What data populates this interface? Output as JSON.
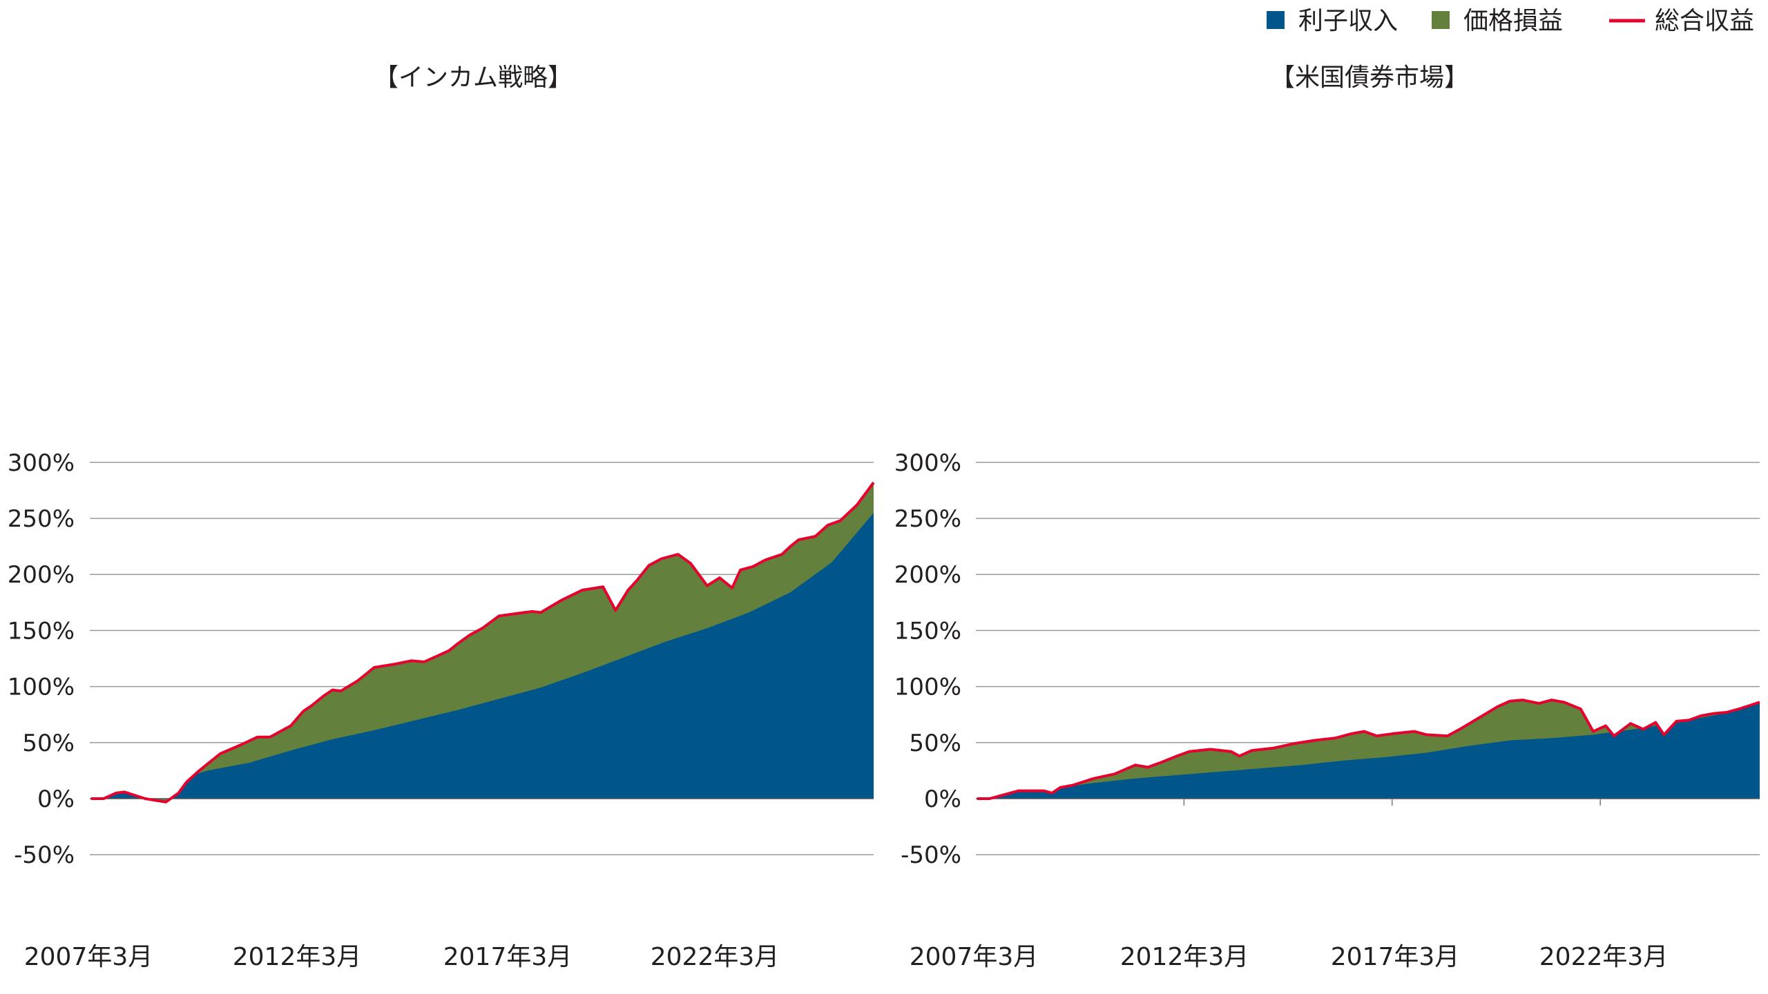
{
  "legend": {
    "items": [
      {
        "label": "利子収入",
        "kind": "square",
        "color": "#00558a"
      },
      {
        "label": "価格損益",
        "kind": "square",
        "color": "#63803d"
      },
      {
        "label": "総合収益",
        "kind": "line",
        "color": "#e4032e"
      }
    ]
  },
  "chart_data": [
    {
      "type": "area",
      "title": "【インカム戦略】",
      "ylim": [
        -50,
        300
      ],
      "yticks": [
        -50,
        0,
        50,
        100,
        150,
        200,
        250,
        300
      ],
      "ytick_labels": [
        "-50%",
        "0%",
        "50%",
        "100%",
        "150%",
        "200%",
        "250%",
        "300%"
      ],
      "x_range": [
        2007.17,
        2026.0
      ],
      "xticks": [
        2007.17,
        2012.17,
        2017.17,
        2022.17
      ],
      "xtick_labels": [
        "2007年3月",
        "2012年3月",
        "2017年3月",
        "2022年3月"
      ],
      "grid": true,
      "series": [
        {
          "name": "利子収入",
          "color": "#00558a",
          "x": [
            2007.2,
            2008,
            2009,
            2010,
            2011,
            2012,
            2013,
            2014,
            2015,
            2016,
            2017,
            2018,
            2019,
            2020,
            2021,
            2022,
            2022.5,
            2023,
            2024,
            2025,
            2026.0
          ],
          "values": [
            0,
            6,
            14,
            25,
            32,
            43,
            53,
            61,
            70,
            79,
            89,
            99,
            112,
            126,
            140,
            152,
            159,
            166,
            184,
            211,
            255
          ]
        },
        {
          "name": "総合収益",
          "color": "#e4032e",
          "x": [
            2007.2,
            2007.5,
            2007.8,
            2008.0,
            2008.5,
            2009.0,
            2009.3,
            2009.5,
            2009.8,
            2010.3,
            2010.8,
            2011.2,
            2011.5,
            2012.0,
            2012.3,
            2012.5,
            2012.8,
            2013.0,
            2013.2,
            2013.6,
            2014.0,
            2014.5,
            2014.9,
            2015.2,
            2015.5,
            2015.8,
            2016.0,
            2016.3,
            2016.6,
            2017.0,
            2017.4,
            2017.8,
            2018.0,
            2018.5,
            2019.0,
            2019.5,
            2019.8,
            2020.1,
            2020.3,
            2020.6,
            2020.9,
            2021.3,
            2021.6,
            2022.0,
            2022.3,
            2022.6,
            2022.8,
            2023.1,
            2023.4,
            2023.8,
            2024.0,
            2024.2,
            2024.6,
            2024.9,
            2025.2,
            2025.6,
            2026.0
          ],
          "values": [
            0,
            0,
            5,
            6,
            0,
            -3,
            5,
            15,
            25,
            40,
            48,
            55,
            55,
            65,
            78,
            83,
            92,
            97,
            96,
            105,
            117,
            120,
            123,
            122,
            127,
            132,
            138,
            146,
            152,
            163,
            165,
            167,
            166,
            177,
            186,
            189,
            168,
            186,
            194,
            208,
            214,
            218,
            210,
            190,
            197,
            188,
            204,
            207,
            213,
            218,
            225,
            231,
            234,
            244,
            248,
            262,
            282
          ]
        }
      ]
    },
    {
      "type": "area",
      "title": "【米国債券市場】",
      "ylim": [
        -50,
        300
      ],
      "yticks": [
        -50,
        0,
        50,
        100,
        150,
        200,
        250,
        300
      ],
      "ytick_labels": [
        "-50%",
        "0%",
        "50%",
        "100%",
        "150%",
        "200%",
        "250%",
        "300%"
      ],
      "x_range": [
        2007.17,
        2026.0
      ],
      "xticks": [
        2007.17,
        2012.17,
        2017.17,
        2022.17
      ],
      "xtick_labels": [
        "2007年3月",
        "2012年3月",
        "2017年3月",
        "2022年3月"
      ],
      "grid": true,
      "series": [
        {
          "name": "利子収入",
          "color": "#00558a",
          "x": [
            2007.2,
            2008,
            2009,
            2010,
            2011,
            2012,
            2013,
            2014,
            2015,
            2016,
            2017,
            2018,
            2019,
            2020,
            2021,
            2022,
            2023,
            2024,
            2025,
            2026.0
          ],
          "values": [
            0,
            5,
            9,
            14,
            18,
            21,
            24,
            27,
            30,
            34,
            37,
            41,
            47,
            52,
            54,
            57,
            62,
            68,
            75,
            86
          ]
        },
        {
          "name": "総合収益",
          "color": "#e4032e",
          "x": [
            2007.2,
            2007.5,
            2007.8,
            2008.2,
            2008.5,
            2008.8,
            2009.0,
            2009.2,
            2009.5,
            2010.0,
            2010.5,
            2011.0,
            2011.3,
            2011.6,
            2012.0,
            2012.3,
            2012.8,
            2013.3,
            2013.5,
            2013.8,
            2014.3,
            2014.8,
            2015.3,
            2015.8,
            2016.2,
            2016.5,
            2016.8,
            2017.2,
            2017.7,
            2018.0,
            2018.5,
            2018.8,
            2019.3,
            2019.7,
            2020.0,
            2020.3,
            2020.7,
            2021.0,
            2021.3,
            2021.7,
            2022.0,
            2022.3,
            2022.5,
            2022.9,
            2023.2,
            2023.5,
            2023.7,
            2024.0,
            2024.3,
            2024.6,
            2024.9,
            2025.2,
            2025.5,
            2026.0
          ],
          "values": [
            0,
            0,
            3,
            7,
            7,
            7,
            5,
            10,
            12,
            18,
            22,
            30,
            28,
            32,
            38,
            42,
            44,
            42,
            38,
            43,
            45,
            49,
            52,
            54,
            58,
            60,
            56,
            58,
            60,
            57,
            56,
            62,
            73,
            82,
            87,
            88,
            85,
            88,
            86,
            80,
            60,
            65,
            56,
            67,
            62,
            68,
            57,
            69,
            70,
            74,
            76,
            77,
            80,
            86
          ]
        }
      ]
    }
  ]
}
